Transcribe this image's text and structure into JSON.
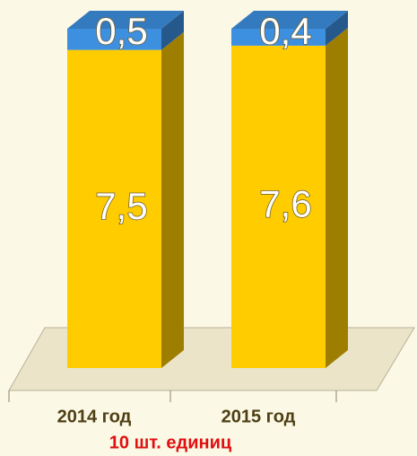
{
  "chart_data": {
    "type": "bar3d_stacked",
    "categories": [
      "2014 год",
      "2015 год"
    ],
    "series": [
      {
        "color": "#ffcc00",
        "values": [
          7.5,
          7.6
        ],
        "value_labels": [
          "7,5",
          "7,6"
        ]
      },
      {
        "color": "#3d8fe0",
        "values": [
          0.5,
          0.4
        ],
        "value_labels": [
          "0,5",
          "0,4"
        ]
      }
    ],
    "caption": "10 шт. единиц"
  }
}
